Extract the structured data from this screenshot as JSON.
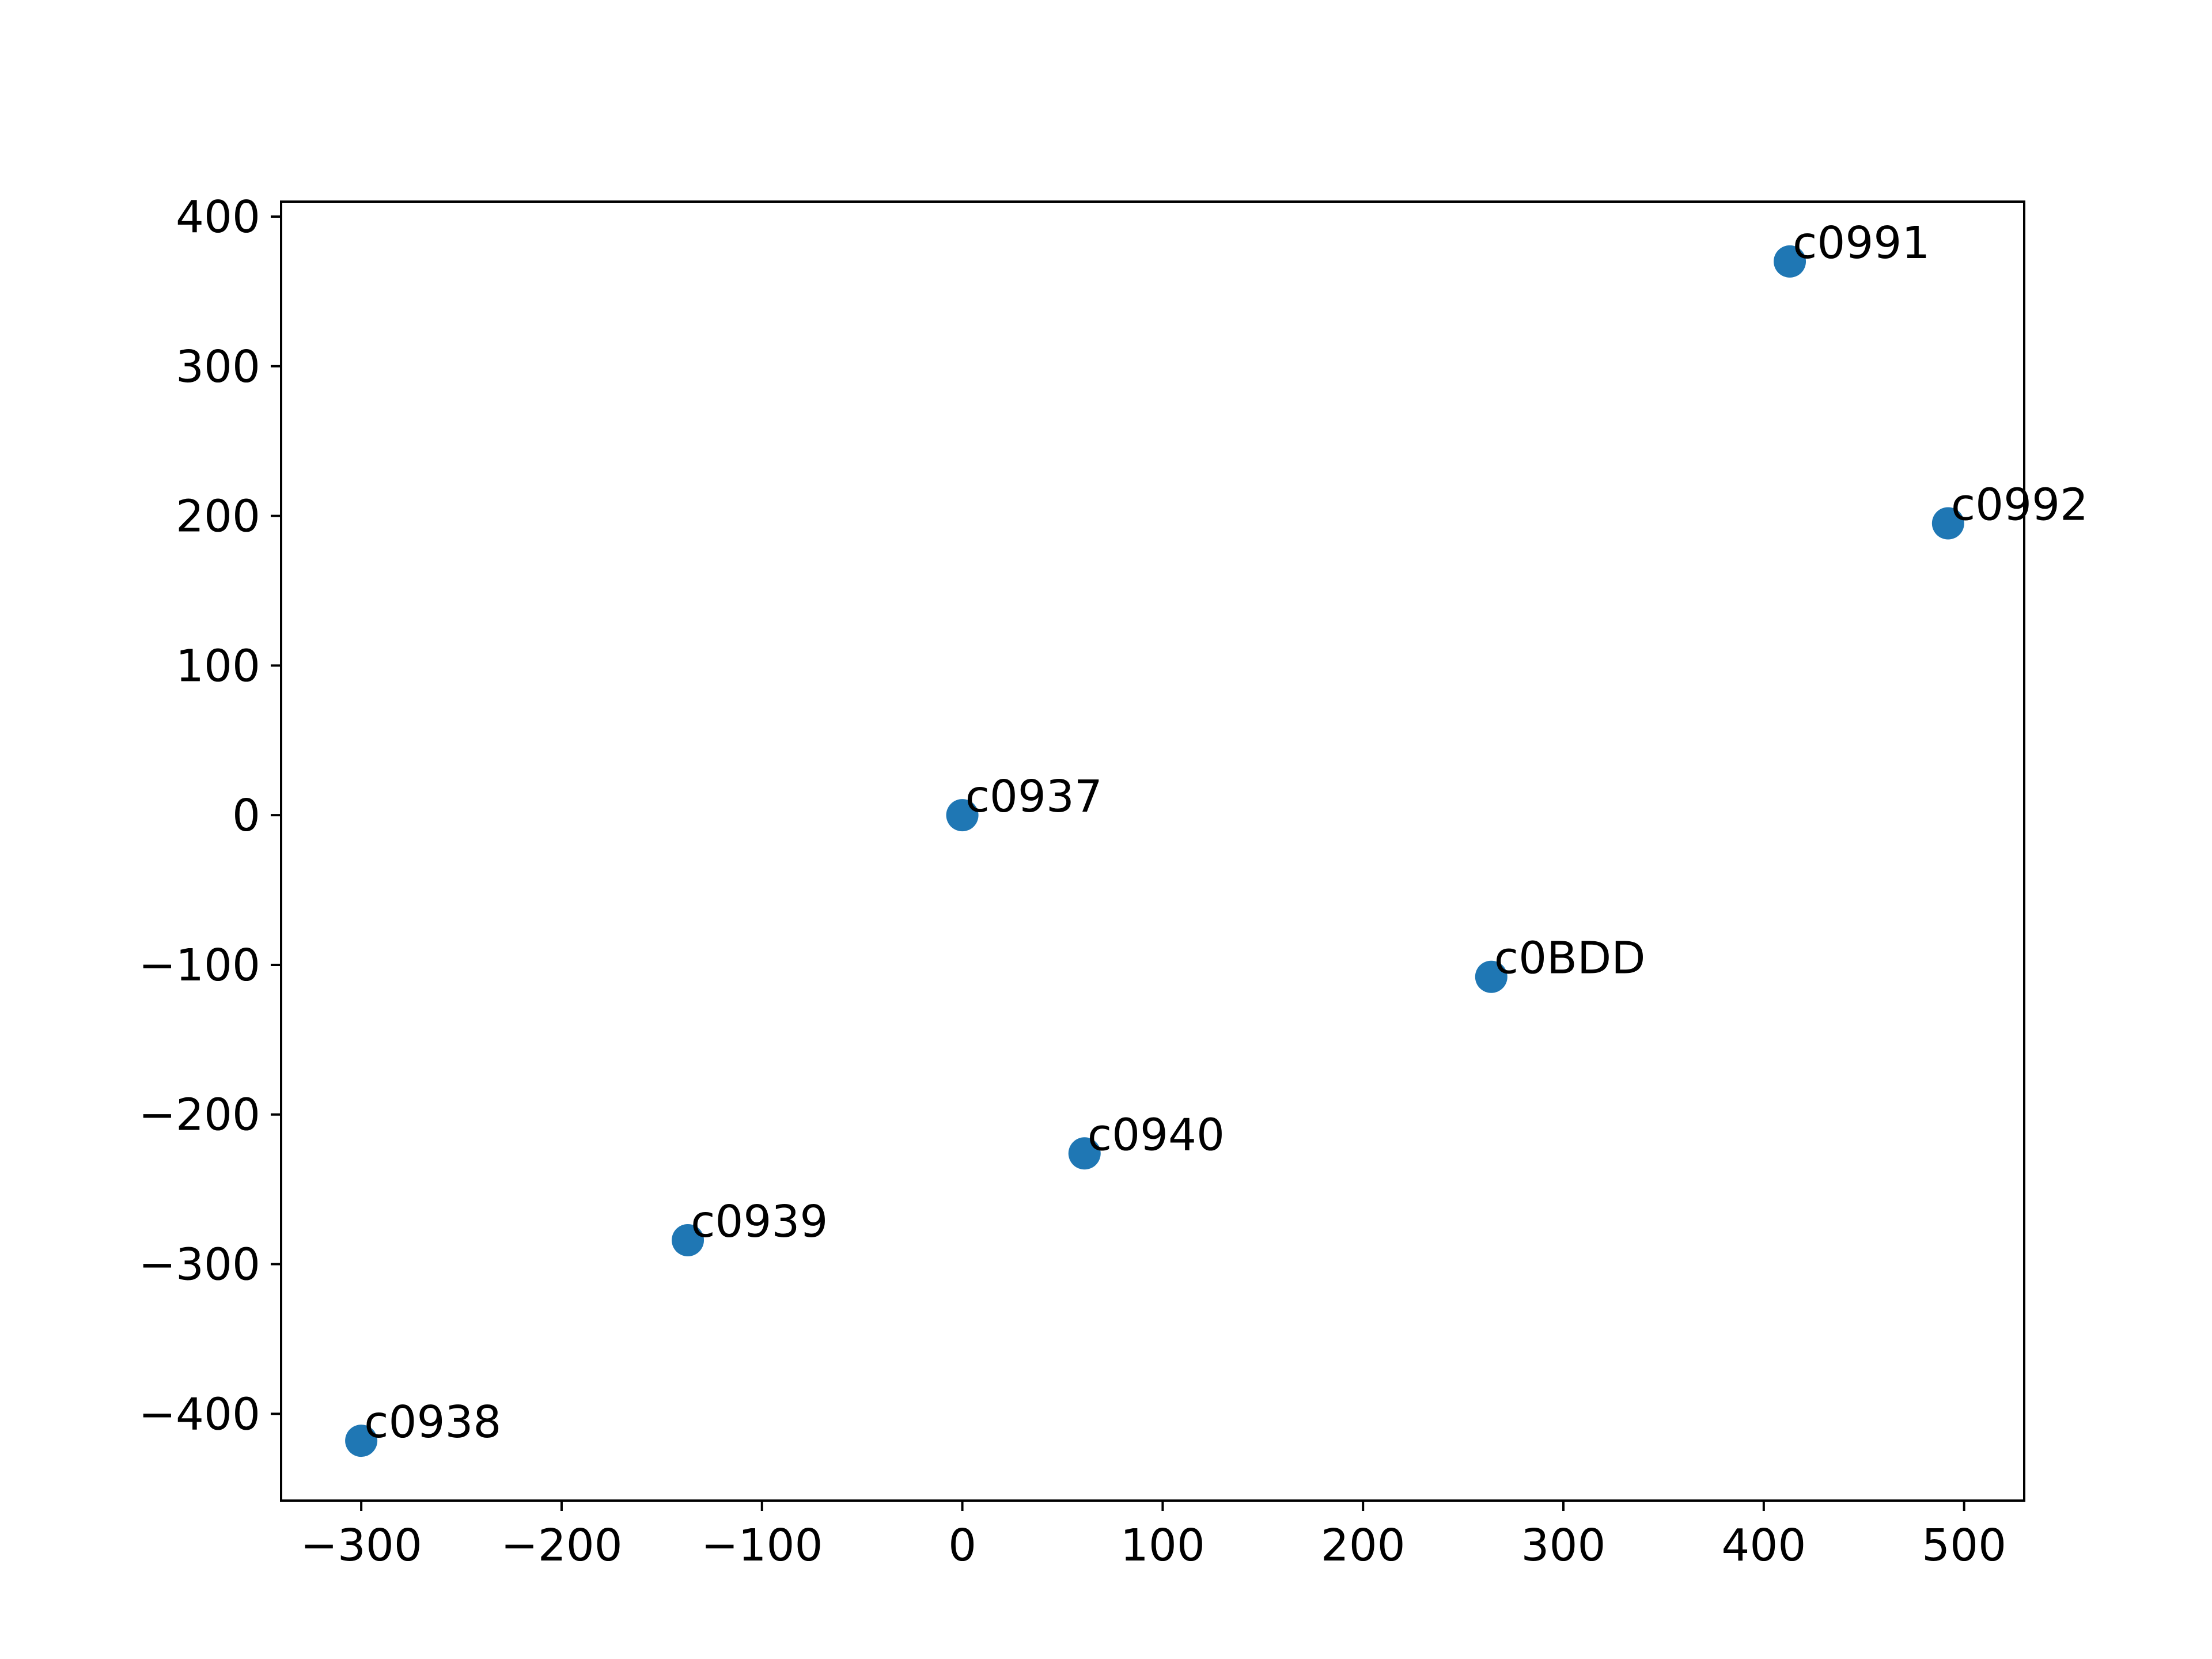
{
  "chart_data": {
    "type": "scatter",
    "title": "",
    "xlabel": "",
    "ylabel": "",
    "xlim": [
      -340,
      530
    ],
    "ylim": [
      -458,
      410
    ],
    "xticks": [
      -300,
      -200,
      -100,
      0,
      100,
      200,
      300,
      400,
      500
    ],
    "yticks": [
      -400,
      -300,
      -200,
      -100,
      0,
      100,
      200,
      300,
      400
    ],
    "grid": false,
    "legend": "none",
    "marker_color": "#1f77b4",
    "points": [
      {
        "label": "c0937",
        "x": 0,
        "y": 0
      },
      {
        "label": "c0991",
        "x": 413,
        "y": 370
      },
      {
        "label": "c0992",
        "x": 492,
        "y": 195
      },
      {
        "label": "c0BDD",
        "x": 264,
        "y": -108
      },
      {
        "label": "c0940",
        "x": 61,
        "y": -226
      },
      {
        "label": "c0939",
        "x": -137,
        "y": -284
      },
      {
        "label": "c0938",
        "x": -300,
        "y": -418
      }
    ]
  }
}
